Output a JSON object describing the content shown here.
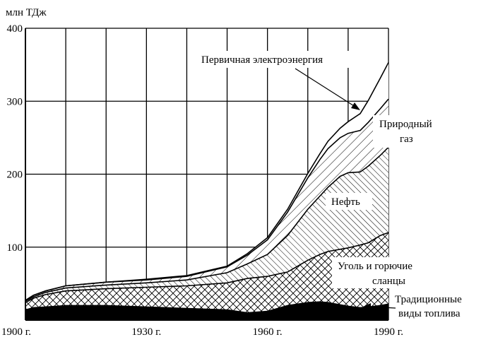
{
  "chart_data": {
    "type": "area",
    "stacked": true,
    "ylabel": "млн ТДж",
    "xlim": [
      1900,
      1990
    ],
    "ylim": [
      0,
      400
    ],
    "x_ticks": [
      {
        "value": 1900,
        "label": "1900 г."
      },
      {
        "value": 1930,
        "label": "1930 г."
      },
      {
        "value": 1960,
        "label": "1960 г."
      },
      {
        "value": 1990,
        "label": "1990 г."
      }
    ],
    "y_ticks": [
      {
        "value": 100,
        "label": "100"
      },
      {
        "value": 200,
        "label": "200"
      },
      {
        "value": 300,
        "label": "300"
      },
      {
        "value": 400,
        "label": "400"
      }
    ],
    "grid_x": [
      1900,
      1910,
      1920,
      1930,
      1940,
      1950,
      1960,
      1970,
      1980,
      1990
    ],
    "grid_y": [
      100,
      200,
      300,
      400
    ],
    "grid": true,
    "x": [
      1900,
      1902,
      1905,
      1910,
      1920,
      1930,
      1940,
      1950,
      1955,
      1960,
      1965,
      1970,
      1973,
      1975,
      1978,
      1980,
      1983,
      1985,
      1988,
      1990
    ],
    "series": [
      {
        "name": "Традиционные виды топлива",
        "fill": "solid",
        "values": [
          14,
          17,
          18,
          20,
          20,
          18,
          16,
          14,
          10,
          12,
          20,
          24,
          25,
          24,
          21,
          19,
          17,
          18,
          20,
          22
        ]
      },
      {
        "name": "Уголь и горючие сланцы",
        "fill": "crosshatch",
        "values": [
          10,
          13,
          17,
          20,
          23,
          27,
          31,
          37,
          47,
          48,
          46,
          58,
          65,
          70,
          76,
          80,
          86,
          88,
          96,
          98
        ]
      },
      {
        "name": "Нефть",
        "fill": "hatch-back",
        "values": [
          2,
          2,
          3,
          4,
          5,
          6,
          8,
          14,
          20,
          30,
          50,
          70,
          80,
          88,
          100,
          103,
          100,
          105,
          110,
          117
        ]
      },
      {
        "name": "Природный газ",
        "fill": "hatch-forward",
        "values": [
          1,
          2,
          2,
          3,
          4,
          4,
          5,
          8,
          12,
          20,
          32,
          43,
          50,
          53,
          53,
          54,
          57,
          60,
          64,
          66
        ]
      },
      {
        "name": "Первичная электроэнергия",
        "fill": "none",
        "values": [
          0,
          0,
          0,
          0,
          0,
          1,
          1,
          1,
          2,
          3,
          4,
          6,
          8,
          10,
          13,
          16,
          23,
          30,
          42,
          50
        ]
      }
    ],
    "annotations": [
      {
        "text": "Первичная электроэнергия"
      },
      {
        "text": "Природный"
      },
      {
        "text": "газ"
      },
      {
        "text": "Нефть"
      },
      {
        "text": "Уголь и горючие"
      },
      {
        "text": "сланцы"
      },
      {
        "text": "Традиционные"
      },
      {
        "text": "виды топлива"
      }
    ]
  }
}
